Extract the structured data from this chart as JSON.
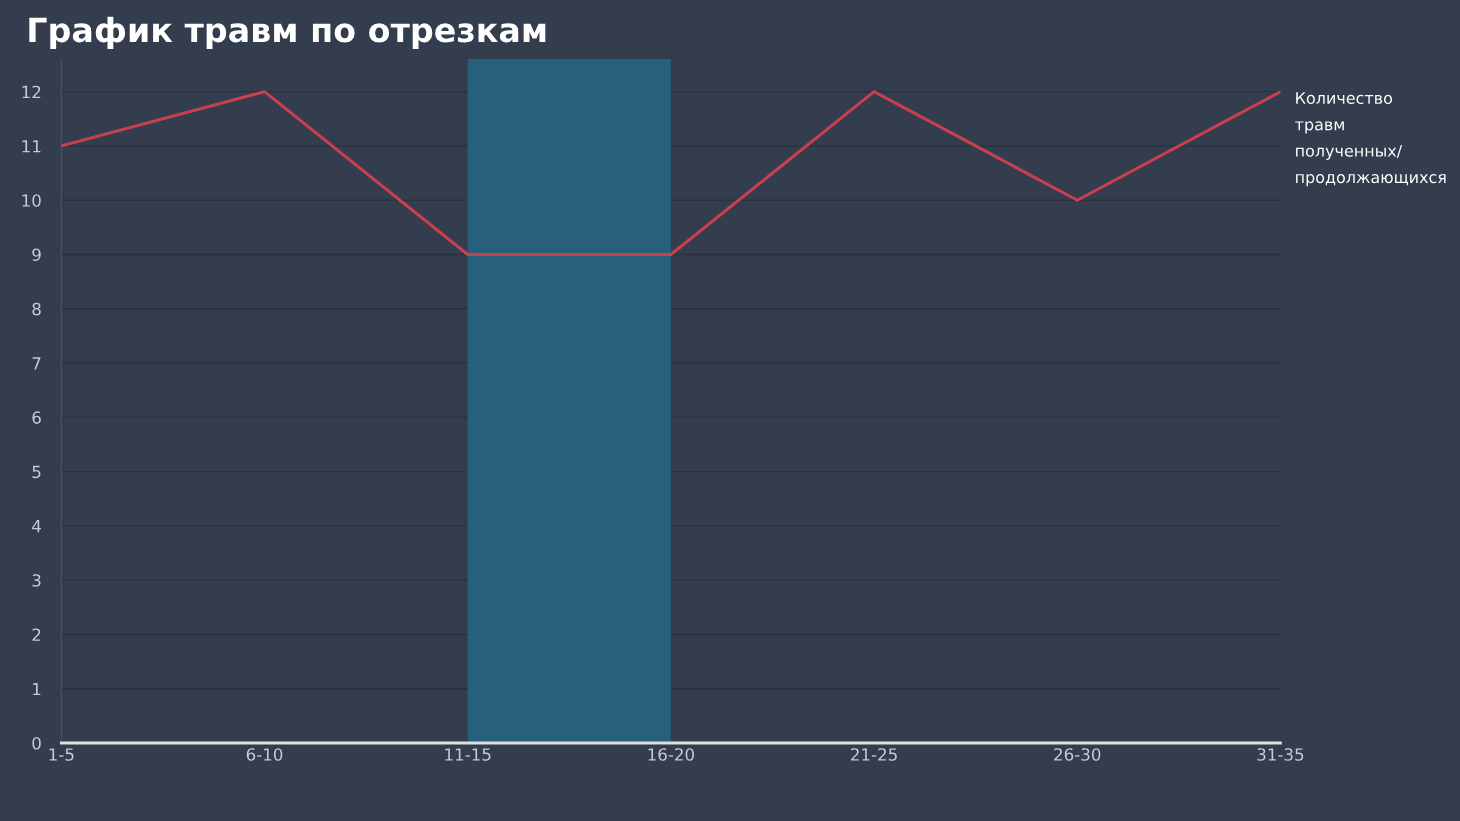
{
  "chart_data": {
    "type": "line",
    "title": "График травм по отрезкам",
    "categories": [
      "1-5",
      "6-10",
      "11-15",
      "16-20",
      "21-25",
      "26-30",
      "31-35"
    ],
    "series": [
      {
        "name": "Количество травм полученных/продолжающихся",
        "color": "#c8404f",
        "values": [
          11,
          12,
          9,
          9,
          12,
          10,
          12
        ]
      }
    ],
    "bands": [
      {
        "axis": "x",
        "from": "11-15",
        "to": "16-20",
        "label": null,
        "color": "#28607c"
      }
    ],
    "ylim": [
      0,
      12.6
    ],
    "yticks": [
      0,
      1,
      2,
      3,
      4,
      5,
      6,
      7,
      8,
      9,
      10,
      11,
      12
    ],
    "grid": "y",
    "legend": "right",
    "marker": "none",
    "line_style": "solid"
  }
}
